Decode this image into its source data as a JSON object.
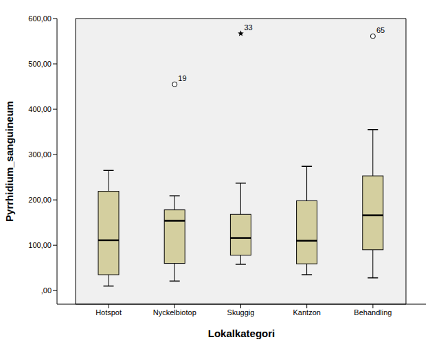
{
  "chart_data": {
    "type": "boxplot",
    "x_label": "Lokalkategori",
    "y_label": "Pyrrhidium_sanguineum",
    "categories": [
      "Hotspot",
      "Nyckelbiotop",
      "Skuggig",
      "Kantzon",
      "Behandling"
    ],
    "boxes": [
      {
        "min": 10,
        "q1": 35,
        "median": 111,
        "q3": 219,
        "max": 265,
        "outliers": []
      },
      {
        "min": 21,
        "q1": 60,
        "median": 154,
        "q3": 178,
        "max": 209,
        "outliers": [
          {
            "value": 455,
            "label": "19",
            "marker": "circle"
          }
        ]
      },
      {
        "min": 58,
        "q1": 78,
        "median": 116,
        "q3": 168,
        "max": 237,
        "outliers": [
          {
            "value": 567,
            "label": "33",
            "marker": "star"
          }
        ]
      },
      {
        "min": 35,
        "q1": 59,
        "median": 110,
        "q3": 198,
        "max": 274,
        "outliers": []
      },
      {
        "min": 28,
        "q1": 90,
        "median": 166,
        "q3": 253,
        "max": 355,
        "outliers": [
          {
            "value": 561,
            "label": "65",
            "marker": "circle"
          }
        ]
      }
    ],
    "color": "#d4cf9f",
    "ylim": [
      -30,
      600
    ],
    "yticks": [
      {
        "value": 0,
        "label": ",00"
      },
      {
        "value": 100,
        "label": "100,00"
      },
      {
        "value": 200,
        "label": "200,00"
      },
      {
        "value": 300,
        "label": "300,00"
      },
      {
        "value": 400,
        "label": "400,00"
      },
      {
        "value": 500,
        "label": "500,00"
      },
      {
        "value": 600,
        "label": "600,00"
      }
    ],
    "grid": false
  }
}
